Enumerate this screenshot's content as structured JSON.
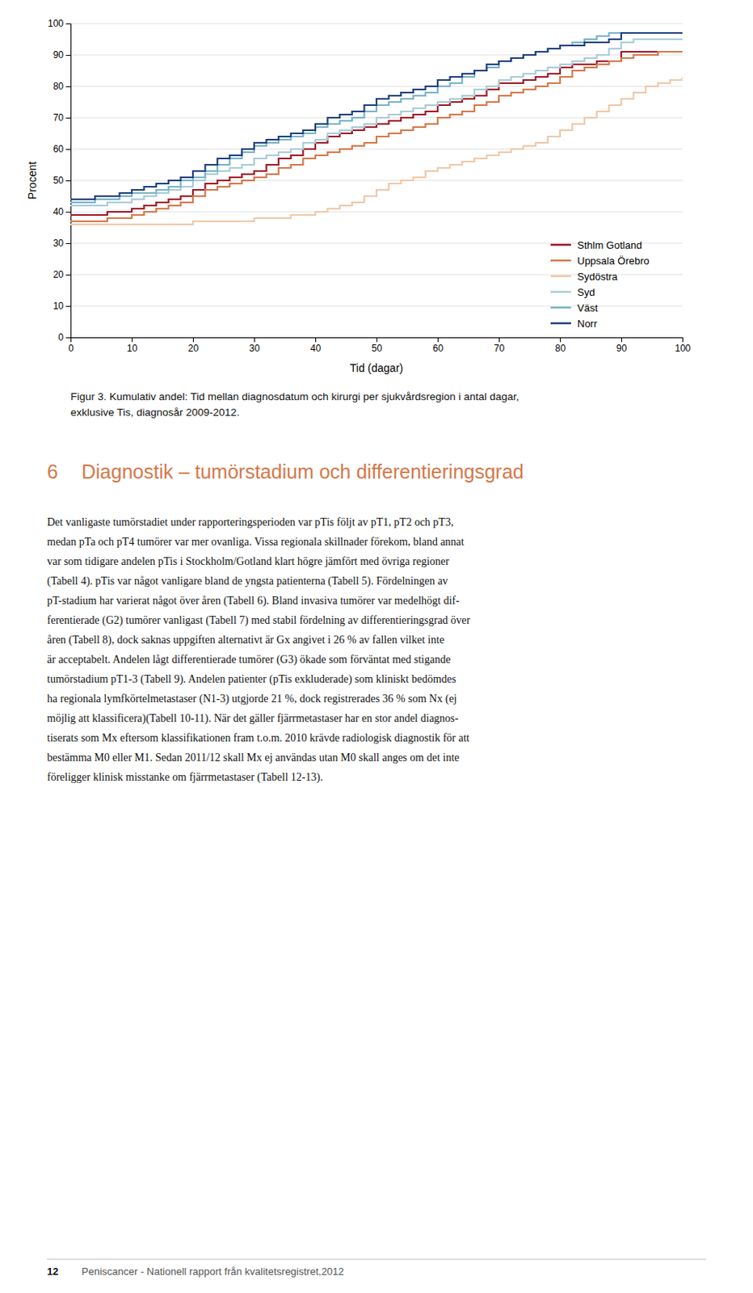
{
  "chart_data": {
    "type": "step",
    "x_label": "Tid (dagar)",
    "y_label": "Procent",
    "xlim": [
      0,
      100
    ],
    "ylim": [
      0,
      100
    ],
    "xticks": [
      0,
      10,
      20,
      30,
      40,
      50,
      60,
      70,
      80,
      90,
      100
    ],
    "yticks": [
      0,
      10,
      20,
      30,
      40,
      50,
      60,
      70,
      80,
      90,
      100
    ],
    "grid": true,
    "legend": "lower right",
    "x": [
      0,
      2,
      4,
      6,
      8,
      10,
      12,
      14,
      16,
      18,
      20,
      22,
      24,
      26,
      28,
      30,
      32,
      34,
      36,
      38,
      40,
      42,
      44,
      46,
      48,
      50,
      52,
      54,
      56,
      58,
      60,
      62,
      64,
      66,
      68,
      70,
      72,
      74,
      76,
      78,
      80,
      82,
      84,
      86,
      88,
      90,
      92,
      94,
      96,
      98,
      100
    ],
    "series": [
      {
        "name": "Sthlm Gotland",
        "color": "#a01828",
        "values": [
          39,
          39,
          39,
          40,
          40,
          41,
          42,
          43,
          44,
          45,
          47,
          49,
          50,
          51,
          52,
          53,
          55,
          57,
          58,
          60,
          62,
          64,
          65,
          66,
          67,
          68,
          69,
          70,
          71,
          72,
          74,
          75,
          76,
          77,
          79,
          81,
          81,
          82,
          83,
          84,
          86,
          87,
          87,
          88,
          88,
          91,
          91,
          91,
          91,
          91,
          91
        ]
      },
      {
        "name": "Uppsala Örebro",
        "color": "#d4784a",
        "values": [
          37,
          37,
          37,
          38,
          38,
          39,
          40,
          41,
          42,
          43,
          45,
          47,
          48,
          49,
          50,
          51,
          52,
          54,
          55,
          57,
          58,
          59,
          60,
          61,
          62,
          64,
          65,
          66,
          67,
          68,
          70,
          71,
          72,
          74,
          75,
          77,
          78,
          79,
          80,
          81,
          83,
          85,
          86,
          87,
          88,
          89,
          90,
          90,
          91,
          91,
          91
        ]
      },
      {
        "name": "Sydöstra",
        "color": "#f0c8a8",
        "values": [
          36,
          36,
          36,
          36,
          36,
          36,
          36,
          36,
          36,
          36,
          37,
          37,
          37,
          37,
          37,
          38,
          38,
          38,
          39,
          39,
          40,
          41,
          42,
          43,
          45,
          47,
          49,
          50,
          51,
          53,
          54,
          55,
          56,
          57,
          58,
          59,
          60,
          61,
          62,
          64,
          66,
          68,
          70,
          72,
          74,
          76,
          78,
          80,
          81,
          82,
          83
        ]
      },
      {
        "name": "Syd",
        "color": "#a8ccd8",
        "values": [
          42,
          42,
          42,
          43,
          43,
          44,
          45,
          46,
          47,
          48,
          50,
          52,
          53,
          54,
          55,
          57,
          58,
          59,
          60,
          62,
          63,
          65,
          66,
          67,
          68,
          70,
          71,
          72,
          73,
          74,
          75,
          76,
          77,
          79,
          80,
          82,
          83,
          84,
          85,
          86,
          87,
          88,
          89,
          90,
          92,
          94,
          95,
          95,
          95,
          95,
          95
        ]
      },
      {
        "name": "Väst",
        "color": "#78b4c8",
        "values": [
          43,
          43,
          44,
          44,
          45,
          46,
          46,
          47,
          48,
          50,
          51,
          53,
          55,
          57,
          59,
          61,
          62,
          63,
          64,
          65,
          67,
          68,
          69,
          70,
          72,
          74,
          75,
          76,
          77,
          78,
          80,
          81,
          83,
          85,
          86,
          88,
          89,
          90,
          91,
          92,
          93,
          94,
          95,
          96,
          97,
          97,
          97,
          97,
          97,
          97,
          97
        ]
      },
      {
        "name": "Norr",
        "color": "#1e4080",
        "values": [
          44,
          44,
          45,
          45,
          46,
          47,
          48,
          49,
          50,
          51,
          53,
          55,
          57,
          58,
          60,
          62,
          63,
          64,
          65,
          66,
          68,
          70,
          71,
          72,
          74,
          76,
          77,
          78,
          79,
          80,
          82,
          83,
          84,
          85,
          87,
          88,
          89,
          90,
          91,
          92,
          93,
          93,
          94,
          94,
          95,
          97,
          97,
          97,
          97,
          97,
          97
        ]
      }
    ]
  },
  "caption": [
    "Figur 3. Kumulativ andel: Tid mellan diagnosdatum och kirurgi per sjukvårdsregion i antal dagar,",
    "exklusive Tis, diagnosår 2009-2012."
  ],
  "section_number": "6",
  "section_title": "Diagnostik – tumörstadium och differentieringsgrad",
  "body": [
    "Det vanligaste tumörstadiet under rapporteringsperioden var pTis följt av pT1, pT2 och pT3,",
    "medan pTa och pT4 tumörer var mer ovanliga. Vissa regionala skillnader förekom, bland annat",
    "var som tidigare andelen pTis i Stockholm/Gotland klart högre jämfört med övriga regioner",
    "(Tabell 4). pTis var något vanligare bland de yngsta patienterna (Tabell 5). Fördelningen av",
    "pT-stadium har varierat något över åren (Tabell 6). Bland invasiva tumörer var medelhögt dif-",
    "ferentierade (G2) tumörer vanligast (Tabell 7) med stabil fördelning av differentieringsgrad över",
    "åren (Tabell 8), dock saknas uppgiften alternativt är Gx angivet i 26 % av fallen vilket inte",
    "är acceptabelt. Andelen lågt differentierade tumörer (G3) ökade som förväntat med stigande",
    "tumörstadium pT1-3 (Tabell 9). Andelen patienter (pTis exkluderade) som kliniskt bedömdes",
    "ha regionala lymfkörtelmetastaser (N1-3) utgjorde 21 %, dock registrerades 36 % som Nx (ej",
    "möjlig att klassificera)(Tabell 10-11). När det gäller fjärrmetastaser har en stor andel diagnos-",
    "tiserats som Mx eftersom klassifikationen fram t.o.m. 2010 krävde radiologisk diagnostik för att",
    "bestämma M0 eller M1. Sedan 2011/12 skall Mx ej användas utan M0 skall anges om det inte",
    "föreligger klinisk misstanke om fjärrmetastaser (Tabell 12-13)."
  ],
  "footer_number": "12",
  "footer_text": "Peniscancer - Nationell rapport från kvalitetsregistret,2012"
}
